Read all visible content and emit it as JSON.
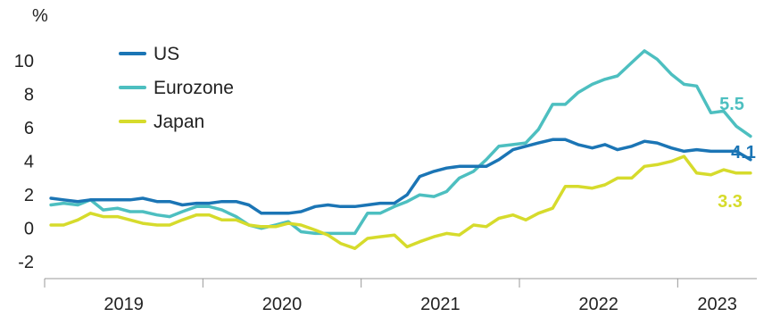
{
  "chart_data": {
    "type": "line",
    "ylabel": "%",
    "ylim": [
      -3,
      11.5
    ],
    "yticks": [
      -2,
      0,
      2,
      4,
      6,
      8,
      10
    ],
    "xlim": [
      2019.0,
      2023.5
    ],
    "year_labels": [
      {
        "label": "2019",
        "center": 2019.5
      },
      {
        "label": "2020",
        "center": 2020.5
      },
      {
        "label": "2021",
        "center": 2021.5
      },
      {
        "label": "2022",
        "center": 2022.5
      },
      {
        "label": "2023",
        "center": 2023.25
      }
    ],
    "year_boundaries": [
      2019.0,
      2020.0,
      2021.0,
      2022.0,
      2023.0
    ],
    "legend_position": "top-left",
    "series": [
      {
        "name": "US",
        "color": "#1b75b5",
        "end_label": "4.1",
        "points": [
          [
            2019.04,
            1.8
          ],
          [
            2019.12,
            1.7
          ],
          [
            2019.21,
            1.6
          ],
          [
            2019.29,
            1.7
          ],
          [
            2019.37,
            1.7
          ],
          [
            2019.46,
            1.7
          ],
          [
            2019.54,
            1.7
          ],
          [
            2019.62,
            1.8
          ],
          [
            2019.71,
            1.6
          ],
          [
            2019.79,
            1.6
          ],
          [
            2019.87,
            1.4
          ],
          [
            2019.96,
            1.5
          ],
          [
            2020.04,
            1.5
          ],
          [
            2020.12,
            1.6
          ],
          [
            2020.21,
            1.6
          ],
          [
            2020.29,
            1.4
          ],
          [
            2020.37,
            0.9
          ],
          [
            2020.46,
            0.9
          ],
          [
            2020.54,
            0.9
          ],
          [
            2020.62,
            1.0
          ],
          [
            2020.71,
            1.3
          ],
          [
            2020.79,
            1.4
          ],
          [
            2020.87,
            1.3
          ],
          [
            2020.96,
            1.3
          ],
          [
            2021.04,
            1.4
          ],
          [
            2021.12,
            1.5
          ],
          [
            2021.21,
            1.5
          ],
          [
            2021.29,
            2.0
          ],
          [
            2021.37,
            3.1
          ],
          [
            2021.46,
            3.4
          ],
          [
            2021.54,
            3.6
          ],
          [
            2021.62,
            3.7
          ],
          [
            2021.71,
            3.7
          ],
          [
            2021.79,
            3.7
          ],
          [
            2021.87,
            4.1
          ],
          [
            2021.96,
            4.7
          ],
          [
            2022.04,
            4.9
          ],
          [
            2022.12,
            5.1
          ],
          [
            2022.21,
            5.3
          ],
          [
            2022.29,
            5.3
          ],
          [
            2022.37,
            5.0
          ],
          [
            2022.46,
            4.8
          ],
          [
            2022.54,
            5.0
          ],
          [
            2022.62,
            4.7
          ],
          [
            2022.71,
            4.9
          ],
          [
            2022.79,
            5.2
          ],
          [
            2022.87,
            5.1
          ],
          [
            2022.96,
            4.8
          ],
          [
            2023.04,
            4.6
          ],
          [
            2023.12,
            4.7
          ],
          [
            2023.21,
            4.6
          ],
          [
            2023.29,
            4.6
          ],
          [
            2023.37,
            4.6
          ],
          [
            2023.46,
            4.1
          ]
        ]
      },
      {
        "name": "Eurozone",
        "color": "#4dbfc0",
        "end_label": "5.5",
        "points": [
          [
            2019.04,
            1.4
          ],
          [
            2019.12,
            1.5
          ],
          [
            2019.21,
            1.4
          ],
          [
            2019.29,
            1.7
          ],
          [
            2019.37,
            1.1
          ],
          [
            2019.46,
            1.2
          ],
          [
            2019.54,
            1.0
          ],
          [
            2019.62,
            1.0
          ],
          [
            2019.71,
            0.8
          ],
          [
            2019.79,
            0.7
          ],
          [
            2019.87,
            1.0
          ],
          [
            2019.96,
            1.3
          ],
          [
            2020.04,
            1.3
          ],
          [
            2020.12,
            1.1
          ],
          [
            2020.21,
            0.7
          ],
          [
            2020.29,
            0.2
          ],
          [
            2020.37,
            0.0
          ],
          [
            2020.46,
            0.2
          ],
          [
            2020.54,
            0.4
          ],
          [
            2020.62,
            -0.2
          ],
          [
            2020.71,
            -0.3
          ],
          [
            2020.79,
            -0.3
          ],
          [
            2020.87,
            -0.3
          ],
          [
            2020.96,
            -0.3
          ],
          [
            2021.04,
            0.9
          ],
          [
            2021.12,
            0.9
          ],
          [
            2021.21,
            1.3
          ],
          [
            2021.29,
            1.6
          ],
          [
            2021.37,
            2.0
          ],
          [
            2021.46,
            1.9
          ],
          [
            2021.54,
            2.2
          ],
          [
            2021.62,
            3.0
          ],
          [
            2021.71,
            3.4
          ],
          [
            2021.79,
            4.1
          ],
          [
            2021.87,
            4.9
          ],
          [
            2021.96,
            5.0
          ],
          [
            2022.04,
            5.1
          ],
          [
            2022.12,
            5.9
          ],
          [
            2022.21,
            7.4
          ],
          [
            2022.29,
            7.4
          ],
          [
            2022.37,
            8.1
          ],
          [
            2022.46,
            8.6
          ],
          [
            2022.54,
            8.9
          ],
          [
            2022.62,
            9.1
          ],
          [
            2022.71,
            9.9
          ],
          [
            2022.79,
            10.6
          ],
          [
            2022.87,
            10.1
          ],
          [
            2022.96,
            9.2
          ],
          [
            2023.04,
            8.6
          ],
          [
            2023.12,
            8.5
          ],
          [
            2023.21,
            6.9
          ],
          [
            2023.29,
            7.0
          ],
          [
            2023.37,
            6.1
          ],
          [
            2023.46,
            5.5
          ]
        ]
      },
      {
        "name": "Japan",
        "color": "#d6db2c",
        "end_label": "3.3",
        "points": [
          [
            2019.04,
            0.2
          ],
          [
            2019.12,
            0.2
          ],
          [
            2019.21,
            0.5
          ],
          [
            2019.29,
            0.9
          ],
          [
            2019.37,
            0.7
          ],
          [
            2019.46,
            0.7
          ],
          [
            2019.54,
            0.5
          ],
          [
            2019.62,
            0.3
          ],
          [
            2019.71,
            0.2
          ],
          [
            2019.79,
            0.2
          ],
          [
            2019.87,
            0.5
          ],
          [
            2019.96,
            0.8
          ],
          [
            2020.04,
            0.8
          ],
          [
            2020.12,
            0.5
          ],
          [
            2020.21,
            0.5
          ],
          [
            2020.29,
            0.2
          ],
          [
            2020.37,
            0.1
          ],
          [
            2020.46,
            0.1
          ],
          [
            2020.54,
            0.3
          ],
          [
            2020.62,
            0.2
          ],
          [
            2020.71,
            -0.1
          ],
          [
            2020.79,
            -0.4
          ],
          [
            2020.87,
            -0.9
          ],
          [
            2020.96,
            -1.2
          ],
          [
            2021.04,
            -0.6
          ],
          [
            2021.12,
            -0.5
          ],
          [
            2021.21,
            -0.4
          ],
          [
            2021.29,
            -1.1
          ],
          [
            2021.37,
            -0.8
          ],
          [
            2021.46,
            -0.5
          ],
          [
            2021.54,
            -0.3
          ],
          [
            2021.62,
            -0.4
          ],
          [
            2021.71,
            0.2
          ],
          [
            2021.79,
            0.1
          ],
          [
            2021.87,
            0.6
          ],
          [
            2021.96,
            0.8
          ],
          [
            2022.04,
            0.5
          ],
          [
            2022.12,
            0.9
          ],
          [
            2022.21,
            1.2
          ],
          [
            2022.29,
            2.5
          ],
          [
            2022.37,
            2.5
          ],
          [
            2022.46,
            2.4
          ],
          [
            2022.54,
            2.6
          ],
          [
            2022.62,
            3.0
          ],
          [
            2022.71,
            3.0
          ],
          [
            2022.79,
            3.7
          ],
          [
            2022.87,
            3.8
          ],
          [
            2022.96,
            4.0
          ],
          [
            2023.04,
            4.3
          ],
          [
            2023.12,
            3.3
          ],
          [
            2023.21,
            3.2
          ],
          [
            2023.29,
            3.5
          ],
          [
            2023.37,
            3.3
          ],
          [
            2023.46,
            3.3
          ]
        ]
      }
    ]
  }
}
